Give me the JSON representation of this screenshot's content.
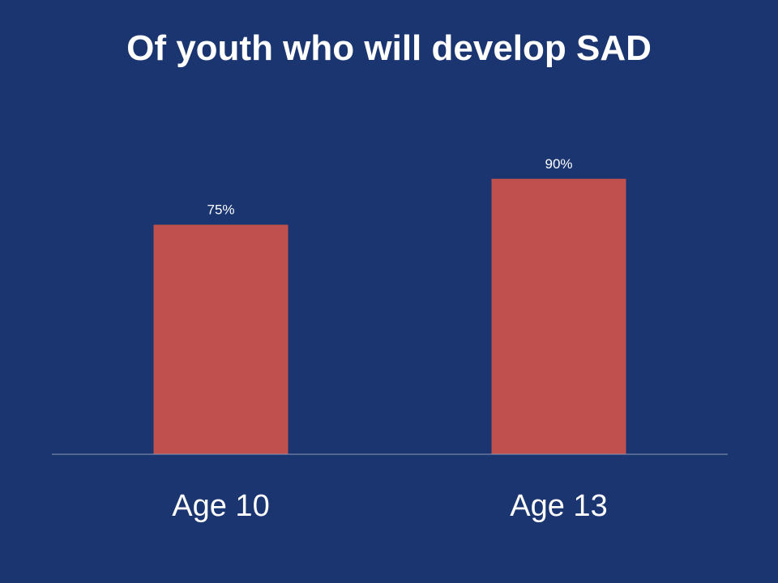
{
  "slide": {
    "title": "Of youth who will develop SAD"
  },
  "chart_data": {
    "type": "bar",
    "title": "Of youth who will develop SAD",
    "categories": [
      "Age 10",
      "Age 13"
    ],
    "values": [
      75,
      90
    ],
    "data_labels": [
      "75%",
      "90%"
    ],
    "ylim": [
      0,
      100
    ],
    "xlabel": "",
    "ylabel": "",
    "grid": false,
    "legend": "none",
    "colors": {
      "background": "#1B3570",
      "bar": "#C0504D",
      "axis": "#8C96B4",
      "text": "#FFFFFF"
    }
  }
}
